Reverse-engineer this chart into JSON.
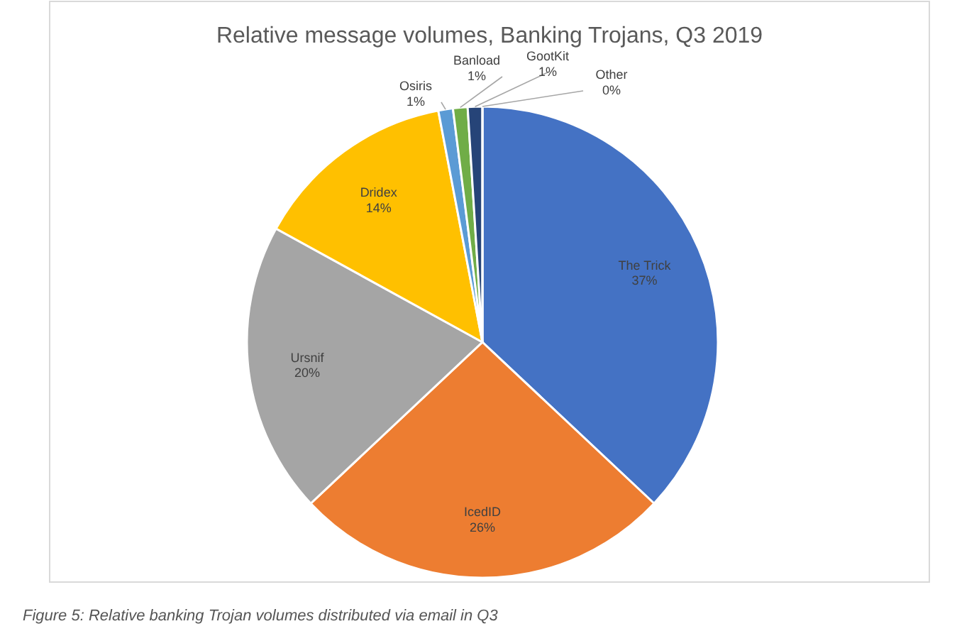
{
  "chart_data": {
    "type": "pie",
    "title": "Relative message volumes, Banking Trojans, Q3 2019",
    "categories": [
      "The Trick",
      "IcedID",
      "Ursnif",
      "Dridex",
      "Osiris",
      "Banload",
      "GootKit",
      "Other"
    ],
    "values": [
      37,
      26,
      20,
      14,
      1,
      1,
      1,
      0
    ],
    "value_labels": [
      "37%",
      "26%",
      "20%",
      "14%",
      "1%",
      "1%",
      "1%",
      "0%"
    ],
    "colors": [
      "#4472c4",
      "#ed7d31",
      "#a5a5a5",
      "#ffc000",
      "#5b9bd5",
      "#70ad47",
      "#264478",
      "#9e480e"
    ],
    "annotations": [
      "Figure 5: Relative banking Trojan volumes distributed via email in Q3"
    ]
  }
}
